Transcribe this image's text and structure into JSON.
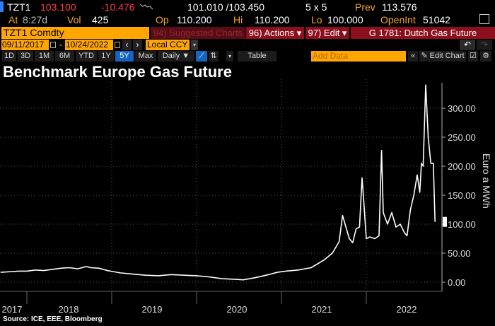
{
  "quote": {
    "ticker": "TZT1",
    "last": "103.100",
    "change": "-10.476",
    "bid_ask": "101.010 /103.450",
    "size": "5 x 5",
    "prev_label": "Prev",
    "prev": "113.576",
    "at_label": "At",
    "time": "8:27d",
    "vol_label": "Vol",
    "vol": "425",
    "op_label": "Op",
    "op": "110.200",
    "hi_label": "Hi",
    "hi": "110.200",
    "lo_label": "Lo",
    "lo": "100.000",
    "oi_label": "OpenInt",
    "oi": "51042"
  },
  "toolbar": {
    "security": "TZT1 Comdty",
    "suggested": "94) Suggested Charts",
    "actions": "96) Actions ▾",
    "edit": "97) Edit ▾",
    "function_title": "G 1781: Dutch Gas Future",
    "start_date": "09/11/2017",
    "end_date": "10/24/2022",
    "currency": "Local CCY",
    "ranges": [
      "1D",
      "3D",
      "1M",
      "6M",
      "YTD",
      "1Y",
      "5Y",
      "Max"
    ],
    "active_range": "5Y",
    "frequency": "Daily ▼",
    "table": "Table",
    "add_data_placeholder": "Add Data",
    "edit_chart": "Edit Chart"
  },
  "colors": {
    "accent": "#ffa600",
    "maroon": "#8b0f1c",
    "active": "#1565c0",
    "down": "#ff3b4e"
  },
  "chart_data": {
    "type": "line",
    "title": "Benchmark Europe Gas Future",
    "ylabel": "Euro a MWh",
    "ylim": [
      0,
      340
    ],
    "yticks": [
      "0.00",
      "50.00",
      "100.00",
      "150.00",
      "200.00",
      "250.00",
      "300.00"
    ],
    "xticks": [
      "2017",
      "2018",
      "2019",
      "2020",
      "2021",
      "2022"
    ],
    "grid": true,
    "series": [
      {
        "name": "TZT1 Comdty",
        "x": [
          2017.69,
          2017.8,
          2017.9,
          2018.0,
          2018.1,
          2018.2,
          2018.3,
          2018.4,
          2018.5,
          2018.6,
          2018.7,
          2018.75,
          2018.85,
          2018.95,
          2019.1,
          2019.25,
          2019.4,
          2019.55,
          2019.7,
          2019.85,
          2020.0,
          2020.15,
          2020.3,
          2020.45,
          2020.55,
          2020.7,
          2020.85,
          2020.95,
          2021.05,
          2021.2,
          2021.35,
          2021.5,
          2021.6,
          2021.68,
          2021.72,
          2021.76,
          2021.8,
          2021.84,
          2021.88,
          2021.92,
          2021.95,
          2021.97,
          2022.0,
          2022.04,
          2022.1,
          2022.15,
          2022.18,
          2022.2,
          2022.25,
          2022.3,
          2022.35,
          2022.4,
          2022.45,
          2022.48,
          2022.52,
          2022.56,
          2022.6,
          2022.63,
          2022.65,
          2022.67,
          2022.7,
          2022.73,
          2022.76,
          2022.79,
          2022.81
        ],
        "values": [
          17,
          18,
          19,
          19,
          21,
          20,
          22,
          24,
          25,
          23,
          27,
          25,
          24,
          20,
          16,
          14,
          12,
          11,
          13,
          12,
          11,
          9,
          6,
          5,
          4,
          8,
          13,
          17,
          19,
          21,
          25,
          38,
          50,
          70,
          115,
          95,
          75,
          68,
          92,
          95,
          180,
          140,
          75,
          78,
          75,
          80,
          227,
          120,
          100,
          120,
          95,
          100,
          85,
          80,
          125,
          150,
          185,
          155,
          205,
          200,
          340,
          250,
          205,
          205,
          104
        ]
      }
    ]
  },
  "source": "Source: ICE, EEE, Bloomberg"
}
